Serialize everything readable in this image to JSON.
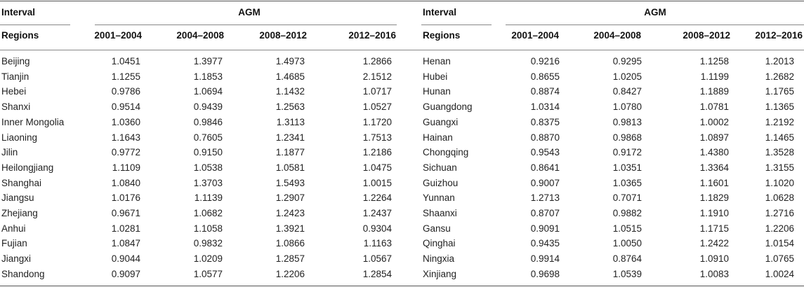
{
  "header": {
    "interval_label": "Interval",
    "regions_label": "Regions",
    "agm_label": "AGM",
    "periods": [
      "2001–2004",
      "2004–2008",
      "2008–2012",
      "2012–2016"
    ]
  },
  "left_rows": [
    {
      "region": "Beijing",
      "values": [
        "1.0451",
        "1.3977",
        "1.4973",
        "1.2866"
      ]
    },
    {
      "region": "Tianjin",
      "values": [
        "1.1255",
        "1.1853",
        "1.4685",
        "2.1512"
      ]
    },
    {
      "region": "Hebei",
      "values": [
        "0.9786",
        "1.0694",
        "1.1432",
        "1.0717"
      ]
    },
    {
      "region": "Shanxi",
      "values": [
        "0.9514",
        "0.9439",
        "1.2563",
        "1.0527"
      ]
    },
    {
      "region": "Inner Mongolia",
      "values": [
        "1.0360",
        "0.9846",
        "1.3113",
        "1.1720"
      ]
    },
    {
      "region": "Liaoning",
      "values": [
        "1.1643",
        "0.7605",
        "1.2341",
        "1.7513"
      ]
    },
    {
      "region": "Jilin",
      "values": [
        "0.9772",
        "0.9150",
        "1.1877",
        "1.2186"
      ]
    },
    {
      "region": "Heilongjiang",
      "values": [
        "1.1109",
        "1.0538",
        "1.0581",
        "1.0475"
      ]
    },
    {
      "region": "Shanghai",
      "values": [
        "1.0840",
        "1.3703",
        "1.5493",
        "1.0015"
      ]
    },
    {
      "region": "Jiangsu",
      "values": [
        "1.0176",
        "1.1139",
        "1.2907",
        "1.2264"
      ]
    },
    {
      "region": "Zhejiang",
      "values": [
        "0.9671",
        "1.0682",
        "1.2423",
        "1.2437"
      ]
    },
    {
      "region": "Anhui",
      "values": [
        "1.0281",
        "1.1058",
        "1.3921",
        "0.9304"
      ]
    },
    {
      "region": "Fujian",
      "values": [
        "1.0847",
        "0.9832",
        "1.0866",
        "1.1163"
      ]
    },
    {
      "region": "Jiangxi",
      "values": [
        "0.9044",
        "1.0209",
        "1.2857",
        "1.0567"
      ]
    },
    {
      "region": "Shandong",
      "values": [
        "0.9097",
        "1.0577",
        "1.2206",
        "1.2854"
      ]
    }
  ],
  "right_rows": [
    {
      "region": "Henan",
      "values": [
        "0.9216",
        "0.9295",
        "1.1258",
        "1.2013"
      ]
    },
    {
      "region": "Hubei",
      "values": [
        "0.8655",
        "1.0205",
        "1.1199",
        "1.2682"
      ]
    },
    {
      "region": "Hunan",
      "values": [
        "0.8874",
        "0.8427",
        "1.1889",
        "1.1765"
      ]
    },
    {
      "region": "Guangdong",
      "values": [
        "1.0314",
        "1.0780",
        "1.0781",
        "1.1365"
      ]
    },
    {
      "region": "Guangxi",
      "values": [
        "0.8375",
        "0.9813",
        "1.0002",
        "1.2192"
      ]
    },
    {
      "region": "Hainan",
      "values": [
        "0.8870",
        "0.9868",
        "1.0897",
        "1.1465"
      ]
    },
    {
      "region": "Chongqing",
      "values": [
        "0.9543",
        "0.9172",
        "1.4380",
        "1.3528"
      ]
    },
    {
      "region": "Sichuan",
      "values": [
        "0.8641",
        "1.0351",
        "1.3364",
        "1.3155"
      ]
    },
    {
      "region": "Guizhou",
      "values": [
        "0.9007",
        "1.0365",
        "1.1601",
        "1.1020"
      ]
    },
    {
      "region": "Yunnan",
      "values": [
        "1.2713",
        "0.7071",
        "1.1829",
        "1.0628"
      ]
    },
    {
      "region": "Shaanxi",
      "values": [
        "0.8707",
        "0.9882",
        "1.1910",
        "1.2716"
      ]
    },
    {
      "region": "Gansu",
      "values": [
        "0.9091",
        "1.0515",
        "1.1715",
        "1.2206"
      ]
    },
    {
      "region": "Qinghai",
      "values": [
        "0.9435",
        "1.0050",
        "1.2422",
        "1.0154"
      ]
    },
    {
      "region": "Ningxia",
      "values": [
        "0.9914",
        "0.8764",
        "1.0910",
        "1.0765"
      ]
    },
    {
      "region": "Xinjiang",
      "values": [
        "0.9698",
        "1.0539",
        "1.0083",
        "1.0024"
      ]
    }
  ]
}
